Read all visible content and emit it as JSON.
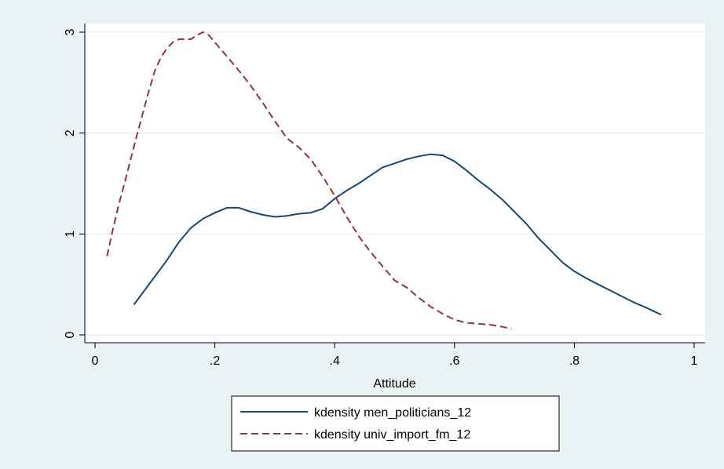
{
  "chart_data": {
    "type": "line",
    "title": "",
    "xlabel": "Attitude",
    "ylabel": "",
    "xlim": [
      0,
      1
    ],
    "ylim": [
      0,
      3
    ],
    "x_ticks": [
      {
        "value": 0,
        "label": "0"
      },
      {
        "value": 0.2,
        "label": ".2"
      },
      {
        "value": 0.4,
        "label": ".4"
      },
      {
        "value": 0.6,
        "label": ".6"
      },
      {
        "value": 0.8,
        "label": ".8"
      },
      {
        "value": 1,
        "label": "1"
      }
    ],
    "y_ticks": [
      {
        "value": 0,
        "label": "0"
      },
      {
        "value": 1,
        "label": "1"
      },
      {
        "value": 2,
        "label": "2"
      },
      {
        "value": 3,
        "label": "3"
      }
    ],
    "grid": "horizontal",
    "legend_position": "bottom",
    "colors": {
      "background": "#eaf2f3",
      "plot_background": "#ffffff",
      "grid": "#eaf2f3",
      "axis": "#000000"
    },
    "series": [
      {
        "name": "kdensity men_politicians_12",
        "color": "#1a476f",
        "dash": "solid",
        "points": [
          [
            0.065,
            0.3
          ],
          [
            0.08,
            0.42
          ],
          [
            0.1,
            0.58
          ],
          [
            0.12,
            0.74
          ],
          [
            0.14,
            0.92
          ],
          [
            0.16,
            1.06
          ],
          [
            0.18,
            1.15
          ],
          [
            0.2,
            1.21
          ],
          [
            0.22,
            1.26
          ],
          [
            0.24,
            1.26
          ],
          [
            0.26,
            1.22
          ],
          [
            0.28,
            1.19
          ],
          [
            0.3,
            1.17
          ],
          [
            0.32,
            1.18
          ],
          [
            0.34,
            1.2
          ],
          [
            0.36,
            1.21
          ],
          [
            0.38,
            1.25
          ],
          [
            0.4,
            1.35
          ],
          [
            0.42,
            1.43
          ],
          [
            0.44,
            1.5
          ],
          [
            0.46,
            1.58
          ],
          [
            0.48,
            1.66
          ],
          [
            0.5,
            1.7
          ],
          [
            0.52,
            1.74
          ],
          [
            0.54,
            1.77
          ],
          [
            0.56,
            1.79
          ],
          [
            0.58,
            1.78
          ],
          [
            0.6,
            1.72
          ],
          [
            0.62,
            1.63
          ],
          [
            0.64,
            1.53
          ],
          [
            0.66,
            1.44
          ],
          [
            0.68,
            1.34
          ],
          [
            0.7,
            1.22
          ],
          [
            0.72,
            1.1
          ],
          [
            0.74,
            0.96
          ],
          [
            0.76,
            0.84
          ],
          [
            0.78,
            0.72
          ],
          [
            0.8,
            0.63
          ],
          [
            0.82,
            0.56
          ],
          [
            0.84,
            0.5
          ],
          [
            0.86,
            0.44
          ],
          [
            0.88,
            0.38
          ],
          [
            0.9,
            0.32
          ],
          [
            0.92,
            0.27
          ],
          [
            0.945,
            0.2
          ]
        ]
      },
      {
        "name": "kdensity univ_import_fm_12",
        "color": "#90353b",
        "dash": "dashed",
        "points": [
          [
            0.02,
            0.78
          ],
          [
            0.03,
            1.05
          ],
          [
            0.04,
            1.3
          ],
          [
            0.05,
            1.52
          ],
          [
            0.06,
            1.75
          ],
          [
            0.07,
            1.98
          ],
          [
            0.08,
            2.2
          ],
          [
            0.09,
            2.42
          ],
          [
            0.1,
            2.62
          ],
          [
            0.11,
            2.75
          ],
          [
            0.12,
            2.84
          ],
          [
            0.13,
            2.9
          ],
          [
            0.14,
            2.93
          ],
          [
            0.15,
            2.93
          ],
          [
            0.16,
            2.93
          ],
          [
            0.17,
            2.97
          ],
          [
            0.18,
            3.0
          ],
          [
            0.19,
            2.97
          ],
          [
            0.2,
            2.9
          ],
          [
            0.22,
            2.76
          ],
          [
            0.24,
            2.62
          ],
          [
            0.26,
            2.47
          ],
          [
            0.28,
            2.3
          ],
          [
            0.3,
            2.12
          ],
          [
            0.32,
            1.95
          ],
          [
            0.34,
            1.86
          ],
          [
            0.36,
            1.74
          ],
          [
            0.38,
            1.57
          ],
          [
            0.4,
            1.38
          ],
          [
            0.42,
            1.17
          ],
          [
            0.44,
            0.98
          ],
          [
            0.46,
            0.82
          ],
          [
            0.48,
            0.68
          ],
          [
            0.5,
            0.54
          ],
          [
            0.52,
            0.47
          ],
          [
            0.54,
            0.37
          ],
          [
            0.56,
            0.28
          ],
          [
            0.58,
            0.21
          ],
          [
            0.6,
            0.15
          ],
          [
            0.62,
            0.12
          ],
          [
            0.64,
            0.11
          ],
          [
            0.66,
            0.1
          ],
          [
            0.68,
            0.08
          ],
          [
            0.695,
            0.06
          ]
        ]
      }
    ]
  }
}
